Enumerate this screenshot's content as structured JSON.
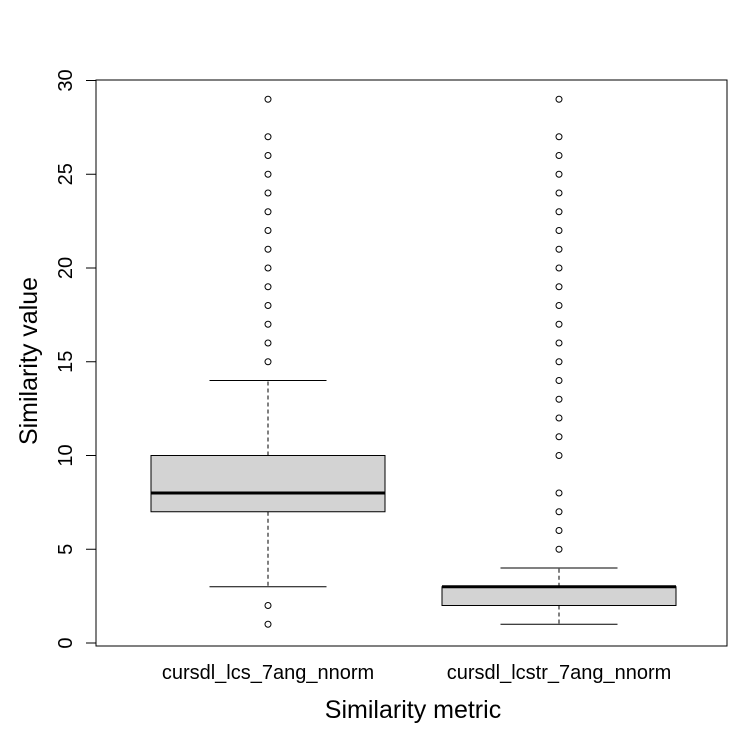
{
  "chart_data": {
    "type": "box",
    "xlabel": "Similarity metric",
    "ylabel": "Similarity value",
    "ylim": [
      0,
      30
    ],
    "yticks": [
      0,
      5,
      10,
      15,
      20,
      25,
      30
    ],
    "categories": [
      "cursdl_lcs_7ang_nnorm",
      "cursdl_lcstr_7ang_nnorm"
    ],
    "boxes": [
      {
        "name": "cursdl_lcs_7ang_nnorm",
        "whisker_low": 3,
        "q1": 7,
        "median": 8,
        "q3": 10,
        "whisker_high": 14,
        "outliers": [
          1,
          2,
          15,
          16,
          17,
          18,
          19,
          20,
          21,
          22,
          23,
          24,
          25,
          26,
          27,
          29
        ]
      },
      {
        "name": "cursdl_lcstr_7ang_nnorm",
        "whisker_low": 1,
        "q1": 2,
        "median": 3,
        "q3": 3,
        "whisker_high": 4,
        "outliers": [
          5,
          6,
          7,
          8,
          10,
          11,
          12,
          13,
          14,
          15,
          16,
          17,
          18,
          19,
          20,
          21,
          22,
          23,
          24,
          25,
          26,
          27,
          29
        ]
      }
    ],
    "box_fill": "#d3d3d3",
    "grid": false
  }
}
